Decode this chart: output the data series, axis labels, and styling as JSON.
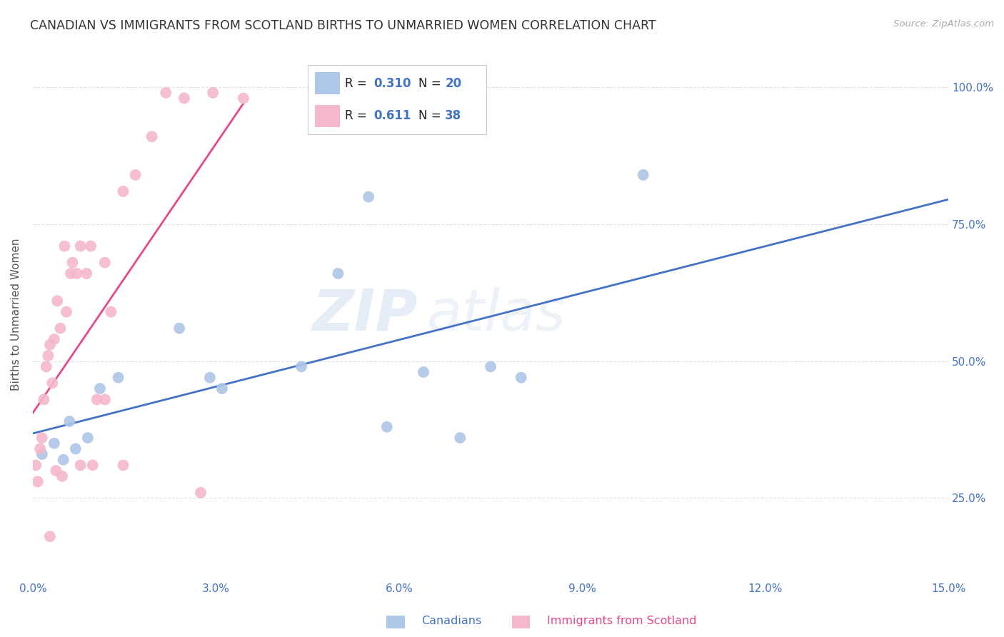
{
  "title": "CANADIAN VS IMMIGRANTS FROM SCOTLAND BIRTHS TO UNMARRIED WOMEN CORRELATION CHART",
  "source": "Source: ZipAtlas.com",
  "ylabel": "Births to Unmarried Women",
  "xlim": [
    0.0,
    15.0
  ],
  "ylim": [
    10.0,
    107.0
  ],
  "watermark": "ZIPatlas",
  "legend_r_canadian": "0.310",
  "legend_n_canadian": "20",
  "legend_r_scotland": "0.611",
  "legend_n_scotland": "38",
  "canadian_color": "#aec6e8",
  "scotland_color": "#f5b8cb",
  "canadian_line_color": "#4472c4",
  "scotland_line_color": "#e8488a",
  "canadians_x": [
    0.15,
    0.35,
    0.5,
    0.6,
    0.7,
    0.9,
    1.1,
    1.4,
    2.4,
    2.9,
    3.1,
    4.4,
    5.0,
    5.5,
    6.4,
    7.0,
    8.0,
    10.0,
    7.5,
    5.8
  ],
  "canadians_y": [
    33,
    35,
    32,
    39,
    34,
    36,
    45,
    47,
    56,
    47,
    45,
    49,
    66,
    80,
    48,
    36,
    47,
    84,
    49,
    38
  ],
  "scotland_x": [
    0.05,
    0.08,
    0.12,
    0.15,
    0.18,
    0.22,
    0.25,
    0.28,
    0.32,
    0.35,
    0.4,
    0.45,
    0.52,
    0.55,
    0.62,
    0.65,
    0.72,
    0.78,
    0.88,
    0.95,
    1.05,
    1.18,
    1.28,
    1.48,
    1.68,
    1.95,
    2.18,
    2.48,
    2.95,
    3.45,
    0.28,
    0.38,
    0.48,
    0.78,
    0.98,
    1.48,
    2.75,
    1.18
  ],
  "scotland_y": [
    31,
    28,
    34,
    36,
    43,
    49,
    51,
    53,
    46,
    54,
    61,
    56,
    71,
    59,
    66,
    68,
    66,
    71,
    66,
    71,
    43,
    68,
    59,
    81,
    84,
    91,
    99,
    98,
    99,
    98,
    18,
    30,
    29,
    31,
    31,
    31,
    26,
    43
  ],
  "background_color": "#ffffff",
  "title_color": "#333333",
  "tick_label_color": "#4472c4",
  "grid_color": "#e0e0e0",
  "title_fontsize": 12.5,
  "axis_fontsize": 11,
  "tick_fontsize": 11,
  "ytick_vals": [
    25.0,
    50.0,
    75.0,
    100.0
  ],
  "xtick_vals": [
    0.0,
    3.0,
    6.0,
    9.0,
    12.0,
    15.0
  ]
}
